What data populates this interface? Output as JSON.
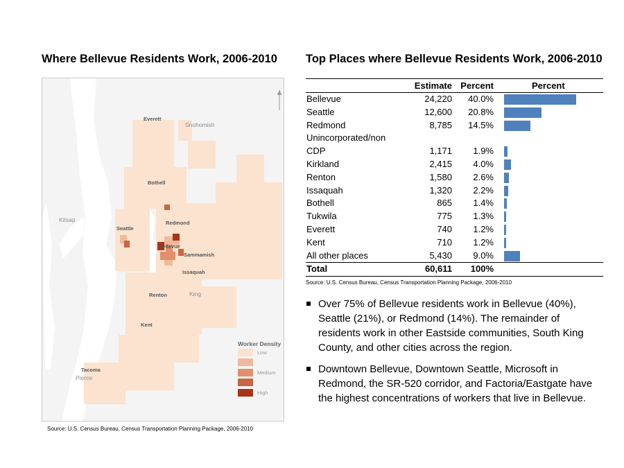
{
  "map": {
    "title": "Where Bellevue Residents Work, 2006-2010",
    "source": "Source: U.S. Census Bureau, Census Transportation Planning Package, 2006-2010",
    "city_labels": [
      "Everett",
      "Bothell",
      "Redmond",
      "Seattle",
      "Bellevue",
      "Sammamish",
      "Issaquah",
      "Renton",
      "Kent",
      "Tacoma"
    ],
    "region_labels": [
      "Snohomish",
      "Kitsap",
      "King",
      "Pierce"
    ],
    "legend": {
      "title": "Worker Density",
      "levels": [
        {
          "label": "Low",
          "color": "#fbe3cf"
        },
        {
          "label": "",
          "color": "#f1b99b"
        },
        {
          "label": "Medium",
          "color": "#e0906b"
        },
        {
          "label": "",
          "color": "#cb6440"
        },
        {
          "label": "High",
          "color": "#a83418"
        }
      ]
    }
  },
  "table": {
    "title": "Top Places where Bellevue Residents Work, 2006-2010",
    "headers": {
      "estimate": "Estimate",
      "percent": "Percent",
      "bar": "Percent"
    },
    "bar_color": "#4f81bd",
    "rows": [
      {
        "place": "Bellevue",
        "estimate": "24,220",
        "percent": "40.0%",
        "value": 40.0
      },
      {
        "place": "Seattle",
        "estimate": "12,600",
        "percent": "20.8%",
        "value": 20.8
      },
      {
        "place": "Redmond",
        "estimate": "8,785",
        "percent": "14.5%",
        "value": 14.5
      },
      {
        "place": "Unincorporated/non",
        "estimate": "",
        "percent": "",
        "value": null
      },
      {
        "place": "CDP",
        "estimate": "1,171",
        "percent": "1.9%",
        "value": 1.9
      },
      {
        "place": "Kirkland",
        "estimate": "2,415",
        "percent": "4.0%",
        "value": 4.0
      },
      {
        "place": "Renton",
        "estimate": "1,580",
        "percent": "2.6%",
        "value": 2.6
      },
      {
        "place": "Issaquah",
        "estimate": "1,320",
        "percent": "2.2%",
        "value": 2.2
      },
      {
        "place": "Bothell",
        "estimate": "865",
        "percent": "1.4%",
        "value": 1.4
      },
      {
        "place": "Tukwila",
        "estimate": "775",
        "percent": "1.3%",
        "value": 1.3
      },
      {
        "place": "Everett",
        "estimate": "740",
        "percent": "1.2%",
        "value": 1.2
      },
      {
        "place": "Kent",
        "estimate": "710",
        "percent": "1.2%",
        "value": 1.2
      },
      {
        "place": "All other places",
        "estimate": "5,430",
        "percent": "9.0%",
        "value": 9.0
      }
    ],
    "total": {
      "place": "Total",
      "estimate": "60,611",
      "percent": "100%"
    },
    "source": "Source: U.S. Census Bureau, Census Transportation Planning Package, 2006-2010"
  },
  "bullets": [
    "Over 75% of Bellevue residents work in Bellevue (40%), Seattle (21%), or Redmond (14%).  The remainder of residents work in other Eastside communities, South King County, and other cities across the region.",
    "Downtown Bellevue, Downtown Seattle, Microsoft in Redmond, the SR-520 corridor, and Factoria/Eastgate have the highest concentrations of workers that live in Bellevue."
  ]
}
